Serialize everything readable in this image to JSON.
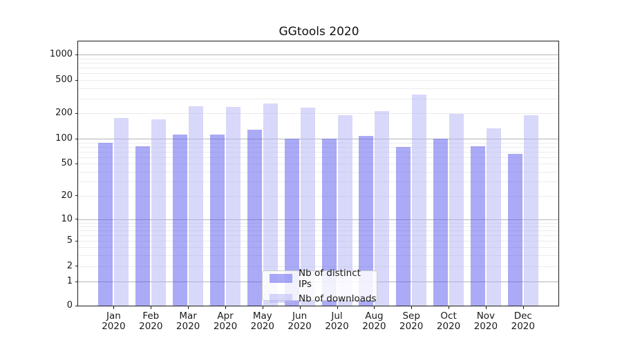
{
  "title": "GGtools 2020",
  "chart_data": {
    "type": "bar",
    "title": "GGtools 2020",
    "categories": [
      "Jan",
      "Feb",
      "Mar",
      "Apr",
      "May",
      "Jun",
      "Jul",
      "Aug",
      "Sep",
      "Oct",
      "Nov",
      "Dec"
    ],
    "category_year_label": "2020",
    "series": [
      {
        "name": "Nb of distinct IPs",
        "color": "#5555ee",
        "fill_alpha": 0.5,
        "values": [
          89,
          81,
          113,
          113,
          128,
          100,
          100,
          108,
          79,
          100,
          81,
          66
        ]
      },
      {
        "name": "Nb of downloads",
        "color": "#b1b1f5",
        "fill_alpha": 0.5,
        "values": [
          176,
          171,
          244,
          240,
          263,
          234,
          189,
          214,
          333,
          197,
          133,
          190
        ]
      }
    ],
    "yscale": "symlog",
    "y_tick_values": [
      0,
      1,
      2,
      5,
      10,
      20,
      50,
      100,
      200,
      500,
      1000
    ],
    "y_major_gridlines": [
      1,
      10,
      100,
      1000
    ],
    "ylim": [
      0,
      1400
    ],
    "grid": true,
    "legend_position": "lower center",
    "colors": {
      "major_grid": "#b4b4b4",
      "minor_grid": "#ebebeb",
      "spine": "#1a1a1a"
    }
  }
}
